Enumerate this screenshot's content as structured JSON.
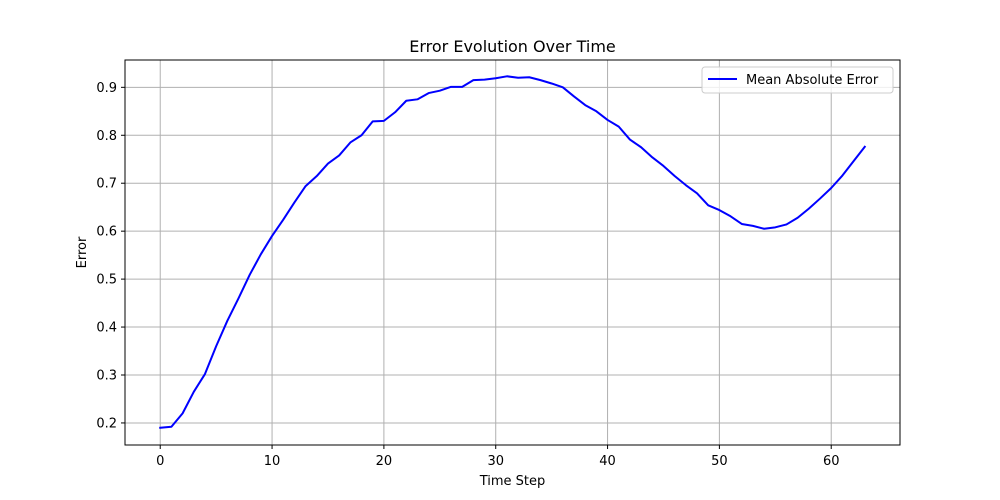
{
  "chart_data": {
    "type": "line",
    "title": "Error Evolution Over Time",
    "xlabel": "Time Step",
    "ylabel": "Error",
    "xlim": [
      -3.15,
      66.15
    ],
    "ylim": [
      0.154,
      0.957
    ],
    "xticks": [
      0,
      10,
      20,
      30,
      40,
      50,
      60
    ],
    "yticks": [
      0.2,
      0.3,
      0.4,
      0.5,
      0.6,
      0.7,
      0.8,
      0.9
    ],
    "xtick_labels": [
      "0",
      "10",
      "20",
      "30",
      "40",
      "50",
      "60"
    ],
    "ytick_labels": [
      "0.2",
      "0.3",
      "0.4",
      "0.5",
      "0.6",
      "0.7",
      "0.8",
      "0.9"
    ],
    "grid": true,
    "legend_position": "top-right",
    "series": [
      {
        "name": "Mean Absolute Error",
        "color": "#0000ff",
        "x": [
          0,
          1,
          2,
          3,
          4,
          5,
          6,
          7,
          8,
          9,
          10,
          11,
          12,
          13,
          14,
          15,
          16,
          17,
          18,
          19,
          20,
          21,
          22,
          23,
          24,
          25,
          26,
          27,
          28,
          29,
          30,
          31,
          32,
          33,
          34,
          35,
          36,
          37,
          38,
          39,
          40,
          41,
          42,
          43,
          44,
          45,
          46,
          47,
          48,
          49,
          50,
          51,
          52,
          53,
          54,
          55,
          56,
          57,
          58,
          59,
          60,
          61,
          62,
          63
        ],
        "values": [
          0.19,
          0.192,
          0.22,
          0.265,
          0.302,
          0.36,
          0.413,
          0.46,
          0.509,
          0.552,
          0.59,
          0.624,
          0.66,
          0.694,
          0.715,
          0.741,
          0.758,
          0.785,
          0.8,
          0.829,
          0.83,
          0.848,
          0.872,
          0.875,
          0.888,
          0.893,
          0.901,
          0.901,
          0.915,
          0.916,
          0.919,
          0.923,
          0.92,
          0.921,
          0.915,
          0.908,
          0.9,
          0.881,
          0.863,
          0.85,
          0.832,
          0.818,
          0.791,
          0.775,
          0.754,
          0.736,
          0.715,
          0.696,
          0.679,
          0.654,
          0.644,
          0.631,
          0.615,
          0.611,
          0.605,
          0.608,
          0.614,
          0.628,
          0.647,
          0.668,
          0.69,
          0.716,
          0.746,
          0.776
        ]
      }
    ]
  }
}
